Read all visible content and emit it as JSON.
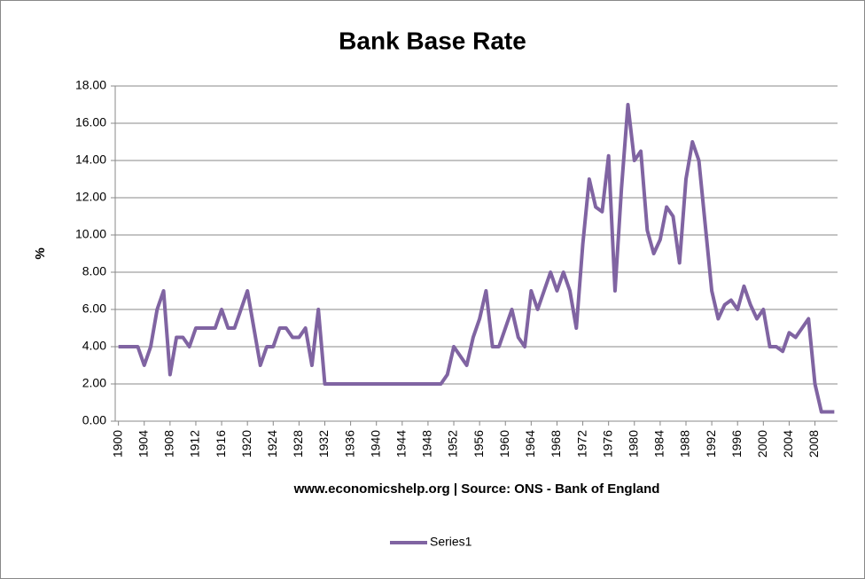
{
  "chart_data": {
    "type": "line",
    "title": "Bank Base Rate",
    "x_label": "www.economicshelp.org | Source: ONS - Bank of England",
    "y_label": "%",
    "x": [
      1900,
      1901,
      1902,
      1903,
      1904,
      1905,
      1906,
      1907,
      1908,
      1909,
      1910,
      1911,
      1912,
      1913,
      1914,
      1915,
      1916,
      1917,
      1918,
      1919,
      1920,
      1921,
      1922,
      1923,
      1924,
      1925,
      1926,
      1927,
      1928,
      1929,
      1930,
      1931,
      1932,
      1933,
      1934,
      1935,
      1936,
      1937,
      1938,
      1939,
      1940,
      1941,
      1942,
      1943,
      1944,
      1945,
      1946,
      1947,
      1948,
      1949,
      1950,
      1951,
      1952,
      1953,
      1954,
      1955,
      1956,
      1957,
      1958,
      1959,
      1960,
      1961,
      1962,
      1963,
      1964,
      1965,
      1966,
      1967,
      1968,
      1969,
      1970,
      1971,
      1972,
      1973,
      1974,
      1975,
      1976,
      1977,
      1978,
      1979,
      1980,
      1981,
      1982,
      1983,
      1984,
      1985,
      1986,
      1987,
      1988,
      1989,
      1990,
      1991,
      1992,
      1993,
      1994,
      1995,
      1996,
      1997,
      1998,
      1999,
      2000,
      2001,
      2002,
      2003,
      2004,
      2005,
      2006,
      2007,
      2008,
      2009,
      2010,
      2011
    ],
    "series": [
      {
        "name": "Series1",
        "color": "#8064a2",
        "values": [
          4,
          4,
          4,
          4,
          3,
          4,
          6,
          7,
          2.5,
          4.5,
          4.5,
          4,
          5,
          5,
          5,
          5,
          6,
          5,
          5,
          6,
          7,
          5,
          3,
          4,
          4,
          5,
          5,
          4.5,
          4.5,
          5,
          3,
          6,
          2,
          2,
          2,
          2,
          2,
          2,
          2,
          2,
          2,
          2,
          2,
          2,
          2,
          2,
          2,
          2,
          2,
          2,
          2,
          2.5,
          4,
          3.5,
          3,
          4.5,
          5.5,
          7,
          4,
          4,
          5,
          6,
          4.5,
          4,
          7,
          6,
          7,
          8,
          7,
          8,
          7,
          5,
          9.5,
          13,
          11.5,
          11.25,
          14.25,
          7,
          12.5,
          17,
          14,
          14.5,
          10.25,
          9,
          9.75,
          11.5,
          11,
          8.5,
          13,
          15,
          14,
          10.5,
          7,
          5.5,
          6.25,
          6.5,
          6,
          7.25,
          6.25,
          5.5,
          6,
          4,
          4,
          3.75,
          4.75,
          4.5,
          5,
          5.5,
          2,
          0.5,
          0.5,
          0.5
        ]
      }
    ],
    "xlim": [
      1899.5,
      2011.5
    ],
    "xticks": [
      1900,
      1904,
      1908,
      1912,
      1916,
      1920,
      1924,
      1928,
      1932,
      1936,
      1940,
      1944,
      1948,
      1952,
      1956,
      1960,
      1964,
      1968,
      1972,
      1976,
      1980,
      1984,
      1988,
      1992,
      1996,
      2000,
      2004,
      2008
    ],
    "ylim": [
      0,
      18
    ],
    "yticks": [
      {
        "value": 0,
        "label": "0.00"
      },
      {
        "value": 2,
        "label": "2.00"
      },
      {
        "value": 4,
        "label": "4.00"
      },
      {
        "value": 6,
        "label": "6.00"
      },
      {
        "value": 8,
        "label": "8.00"
      },
      {
        "value": 10,
        "label": "10.00"
      },
      {
        "value": 12,
        "label": "12.00"
      },
      {
        "value": 14,
        "label": "14.00"
      },
      {
        "value": 16,
        "label": "16.00"
      },
      {
        "value": 18,
        "label": "18.00"
      }
    ],
    "grid": true,
    "legend": "bottom"
  }
}
